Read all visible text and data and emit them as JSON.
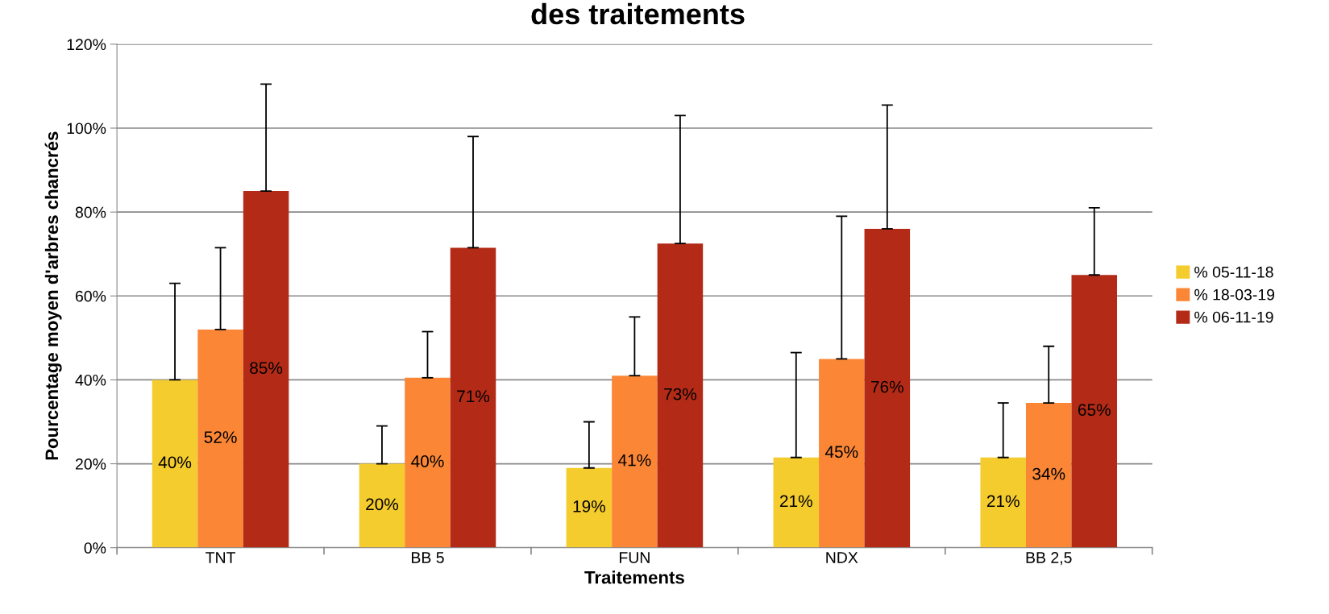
{
  "chart_data": {
    "type": "bar",
    "title": "des traitements",
    "xlabel": "Traitements",
    "ylabel": "Pourcentage moyen d'arbres chancrés",
    "categories": [
      "TNT",
      "BB 5",
      "FUN",
      "NDX",
      "BB 2,5"
    ],
    "series": [
      {
        "name": "% 05-11-18",
        "color": "#f4cc2e",
        "values": [
          40,
          20,
          19,
          21.5,
          21.5
        ],
        "errors": [
          [
            40,
            63
          ],
          [
            20,
            29
          ],
          [
            19,
            30
          ],
          [
            21.5,
            46.5
          ],
          [
            21.5,
            34.5
          ]
        ],
        "value_labels": [
          "40%",
          "20%",
          "19%",
          "21%",
          "21%"
        ]
      },
      {
        "name": "% 18-03-19",
        "color": "#fb8736",
        "values": [
          52,
          40.5,
          41,
          45,
          34.5
        ],
        "errors": [
          [
            52,
            71.5
          ],
          [
            40.5,
            51.5
          ],
          [
            41,
            55
          ],
          [
            45,
            79
          ],
          [
            34.5,
            48
          ]
        ],
        "value_labels": [
          "52%",
          "40%",
          "41%",
          "45%",
          "34%"
        ]
      },
      {
        "name": "% 06-11-19",
        "color": "#b32b17",
        "values": [
          85,
          71.5,
          72.5,
          76,
          65
        ],
        "errors": [
          [
            85,
            110.5
          ],
          [
            71.5,
            98
          ],
          [
            72.5,
            103
          ],
          [
            76,
            105.5
          ],
          [
            65,
            81
          ]
        ],
        "value_labels": [
          "85%",
          "71%",
          "73%",
          "76%",
          "65%"
        ]
      }
    ],
    "ylim": [
      0,
      120
    ],
    "yticks": [
      {
        "value": 0,
        "label": "0%"
      },
      {
        "value": 20,
        "label": "20%"
      },
      {
        "value": 40,
        "label": "40%"
      },
      {
        "value": 60,
        "label": "60%"
      },
      {
        "value": 80,
        "label": "80%"
      },
      {
        "value": 100,
        "label": "100%"
      },
      {
        "value": 120,
        "label": "120%"
      }
    ],
    "grid": "y",
    "legend": "right"
  }
}
